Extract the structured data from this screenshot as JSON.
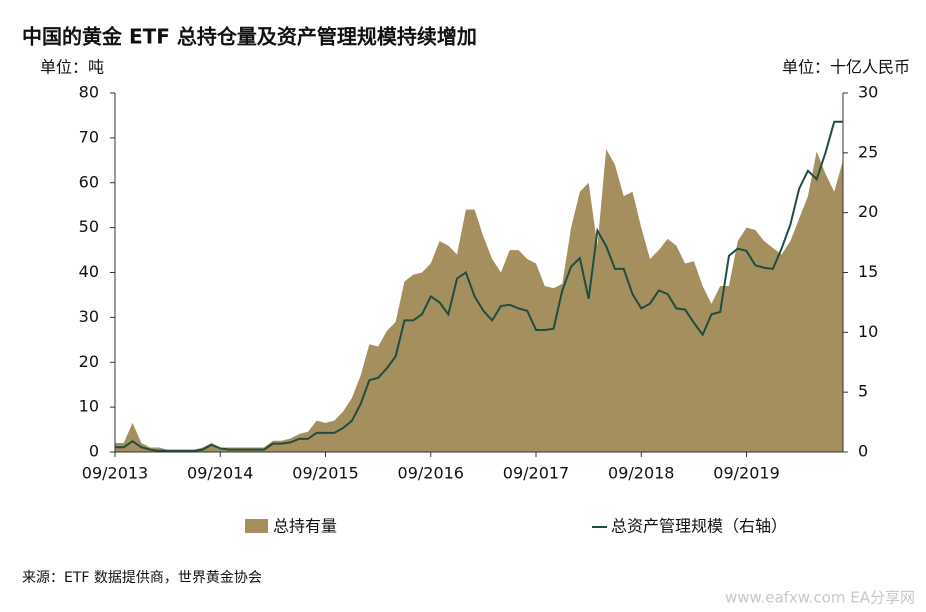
{
  "chart_data": {
    "type": "area",
    "title": "中国的黄金 ETF 总持仓量及资产管理规模持续增加",
    "y_unit_label": "单位：吨",
    "y2_unit_label": "单位：十亿人民币",
    "source": "来源：ETF 数据提供商，世界黄金协会",
    "watermark": "www.eafxw.com  EA分享网",
    "categories": [
      "09/2013",
      null,
      null,
      null,
      null,
      null,
      null,
      null,
      null,
      null,
      null,
      null,
      "09/2014",
      null,
      null,
      null,
      null,
      null,
      null,
      null,
      null,
      null,
      null,
      null,
      "09/2015",
      null,
      null,
      null,
      null,
      null,
      null,
      null,
      null,
      null,
      null,
      null,
      "09/2016",
      null,
      null,
      null,
      null,
      null,
      null,
      null,
      null,
      null,
      null,
      null,
      "09/2017",
      null,
      null,
      null,
      null,
      null,
      null,
      null,
      null,
      null,
      null,
      null,
      "09/2018",
      null,
      null,
      null,
      null,
      null,
      null,
      null,
      null,
      null,
      null,
      null,
      "09/2019",
      null,
      null,
      null,
      null,
      null,
      null,
      null,
      null,
      null,
      null,
      null
    ],
    "series": [
      {
        "name": "总持有量",
        "type": "area",
        "color": "#a68f5e",
        "values": [
          2,
          2,
          6.5,
          2,
          1,
          1,
          0.5,
          0.5,
          0.5,
          0.5,
          1,
          2,
          1,
          1,
          1,
          1,
          1,
          1,
          2.5,
          2.5,
          3,
          4,
          4.5,
          7,
          6.5,
          7,
          9,
          12,
          17,
          24,
          23.5,
          27,
          29,
          38,
          39.5,
          40,
          42,
          47,
          46,
          44,
          54,
          54,
          48,
          43,
          40,
          45,
          45,
          43,
          42,
          37,
          36.5,
          37.5,
          50,
          58,
          60,
          46,
          67.5,
          64,
          57,
          58,
          50,
          43,
          45,
          47.5,
          46,
          42,
          42.5,
          37,
          33,
          37,
          37,
          47,
          50,
          49.5,
          47,
          45.5,
          44,
          47,
          52,
          57,
          67,
          62,
          58,
          65
        ]
      },
      {
        "name": "总资产管理规模（右轴）",
        "type": "line",
        "axis": "y2",
        "color": "#1f4d3f",
        "values": [
          0.4,
          0.4,
          0.9,
          0.4,
          0.2,
          0.1,
          0.1,
          0.1,
          0.1,
          0.1,
          0.2,
          0.6,
          0.3,
          0.2,
          0.2,
          0.2,
          0.2,
          0.2,
          0.7,
          0.7,
          0.8,
          1.1,
          1.1,
          1.6,
          1.6,
          1.6,
          2,
          2.6,
          4,
          6,
          6.2,
          7,
          8,
          11,
          11,
          11.5,
          13,
          12.5,
          11.5,
          14.5,
          15,
          13,
          11.8,
          11,
          12.2,
          12.3,
          12,
          11.8,
          10.2,
          10.2,
          10.3,
          13.5,
          15.5,
          16.2,
          12.8,
          18.5,
          17.2,
          15.3,
          15.3,
          13.2,
          12,
          12.4,
          13.5,
          13.2,
          12,
          11.9,
          10.8,
          9.8,
          11.5,
          11.7,
          16.4,
          17,
          16.8,
          15.6,
          15.4,
          15.3,
          17,
          19,
          22,
          23.5,
          22.8,
          25,
          27.6,
          27.6
        ]
      }
    ],
    "ylim": [
      0,
      80
    ],
    "yticks": [
      0,
      10,
      20,
      30,
      40,
      50,
      60,
      70,
      80
    ],
    "y2lim": [
      0,
      30
    ],
    "y2ticks": [
      0,
      5,
      10,
      15,
      20,
      25,
      30
    ]
  }
}
